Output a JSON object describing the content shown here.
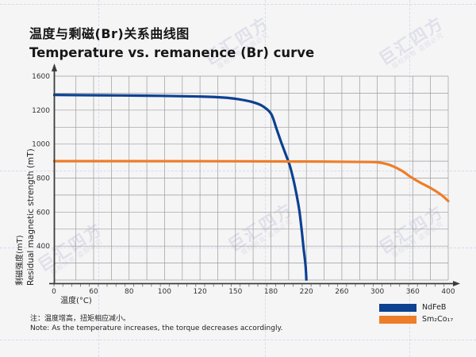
{
  "header": {
    "title_zh": "温度与剩磁(Br)关系曲线图",
    "title_en": "Temperature vs. remanence (Br) curve"
  },
  "chart_data": {
    "type": "line",
    "title_zh": "温度与剩磁(Br)关系曲线图",
    "title_en": "Temperature vs. remanence (Br) curve",
    "xlabel": "温度(°C)",
    "ylabel_zh": "剩磁强度(mT)",
    "ylabel_en": "Residual magnetic strength (mT)",
    "grid": true,
    "ylim": [
      0,
      1600
    ],
    "xlim": [
      0,
      400
    ],
    "x_tick_labels": [
      "0",
      "60",
      "80",
      "100",
      "120",
      "150",
      "180",
      "220",
      "260",
      "300",
      "360",
      "400"
    ],
    "x_tick_values": [
      0,
      60,
      80,
      100,
      120,
      150,
      180,
      220,
      260,
      300,
      360,
      400
    ],
    "y_tick_labels": [
      "1600",
      "1200",
      "1000",
      "800",
      "600",
      "400"
    ],
    "y_tick_values": [
      1600,
      1200,
      1000,
      800,
      600,
      400
    ],
    "origin_label": "0",
    "legend_position": "bottom-right",
    "series": [
      {
        "name": "NdFeB",
        "color": "#0d4191",
        "points": [
          [
            0,
            1380
          ],
          [
            50,
            1376
          ],
          [
            90,
            1370
          ],
          [
            120,
            1360
          ],
          [
            140,
            1348
          ],
          [
            152,
            1330
          ],
          [
            163,
            1300
          ],
          [
            172,
            1255
          ],
          [
            180,
            1180
          ],
          [
            186,
            1095
          ],
          [
            192,
            1005
          ],
          [
            197,
            935
          ],
          [
            201,
            878
          ],
          [
            205,
            800
          ],
          [
            209,
            700
          ],
          [
            212,
            610
          ],
          [
            215,
            480
          ],
          [
            217,
            360
          ],
          [
            218.5,
            230
          ],
          [
            219.5,
            110
          ],
          [
            220,
            0
          ]
        ]
      },
      {
        "name": "Sm₂Co₁₇",
        "color": "#ee7d28",
        "points": [
          [
            0,
            900
          ],
          [
            80,
            900
          ],
          [
            160,
            899
          ],
          [
            240,
            897
          ],
          [
            290,
            895
          ],
          [
            302,
            892
          ],
          [
            312,
            886
          ],
          [
            322,
            876
          ],
          [
            332,
            861
          ],
          [
            344,
            838
          ],
          [
            356,
            808
          ],
          [
            368,
            775
          ],
          [
            382,
            736
          ],
          [
            392,
            702
          ],
          [
            400,
            665
          ]
        ]
      }
    ]
  },
  "legend": {
    "items": [
      {
        "label": "NdFeB",
        "color": "#0d4191"
      },
      {
        "label": "Sm₂Co₁₇",
        "color": "#ee7d28"
      }
    ]
  },
  "note": {
    "zh": "注：温度增高，扭矩相应减小。",
    "en": "Note: As the temperature increases, the torque decreases accordingly."
  },
  "watermark": {
    "text": "巨汇四方",
    "subtext": "版权所有 盗图必究"
  },
  "colors": {
    "background": "#f5f5f6",
    "gridline": "#9c9c9c",
    "axis": "#3c3c3c",
    "tick_text": "#333333"
  }
}
